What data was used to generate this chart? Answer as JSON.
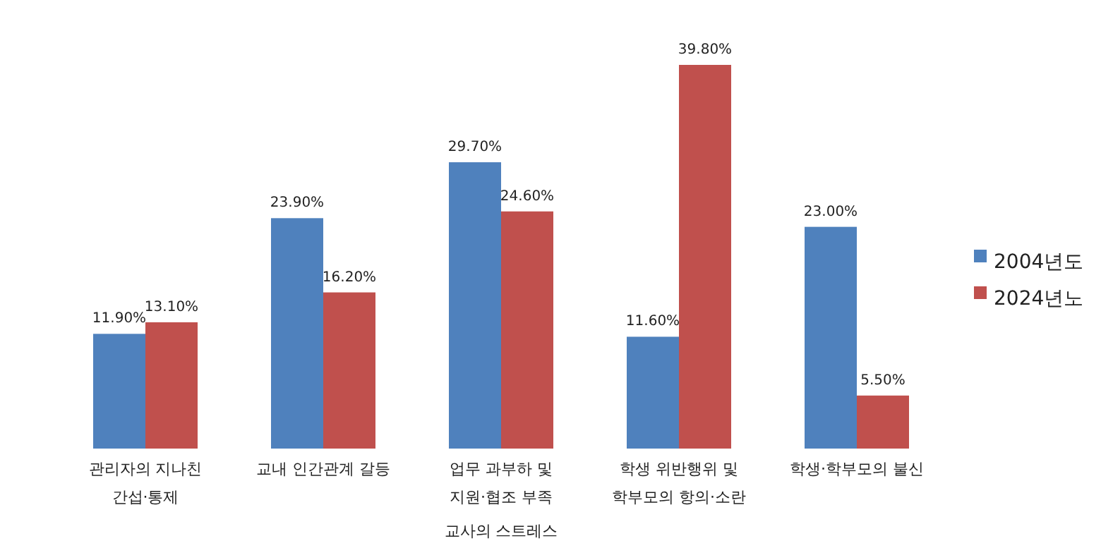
{
  "chart_data": {
    "type": "bar",
    "xlabel": "교사의 스트레스",
    "legend": "right",
    "categories": [
      "관리자의 지나친 간섭·통제",
      "교내 인간관계 갈등",
      "업무 과부하 및 지원·협조 부족",
      "학생 위반행위 및 학부모의 항의·소란",
      "학생·학부모의 불신"
    ],
    "series": [
      {
        "name": "2004년도",
        "color": "#4f81bd",
        "values": [
          11.9,
          23.9,
          29.7,
          11.6,
          23.0
        ],
        "value_labels": [
          "11.90%",
          "23.90%",
          "29.70%",
          "11.60%",
          "23.00%"
        ]
      },
      {
        "name": "2024년노",
        "color": "#c0504d",
        "values": [
          13.1,
          16.2,
          24.6,
          39.8,
          5.5
        ],
        "value_labels": [
          "13.10%",
          "16.20%",
          "24.60%",
          "39.80%",
          "5.50%"
        ]
      }
    ]
  }
}
